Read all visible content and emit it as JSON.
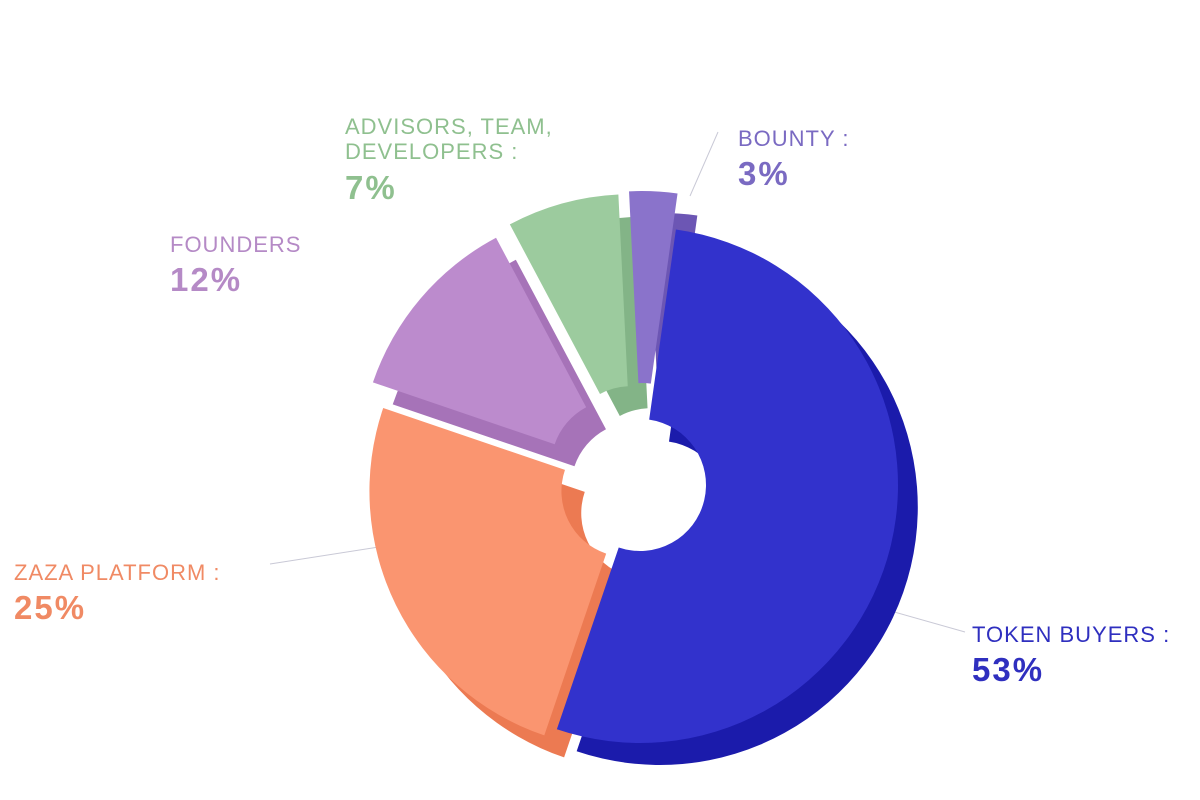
{
  "chart_data": {
    "type": "pie",
    "variant": "3d-donut",
    "title": "",
    "slices": [
      {
        "label": "TOKEN BUYERS :",
        "value": 53,
        "value_text": "53%",
        "color": "#3232cc",
        "side": "#1b1bab",
        "text_color": "#2f2fbf"
      },
      {
        "label": "ZAZA PLATFORM :",
        "value": 25,
        "value_text": "25%",
        "color": "#fa9570",
        "side": "#ec7a52",
        "text_color": "#f08a64"
      },
      {
        "label": "FOUNDERS",
        "value": 12,
        "value_text": "12%",
        "color": "#bc8bcd",
        "side": "#a673b8",
        "text_color": "#b58ac6"
      },
      {
        "label": "ADVISORS, TEAM, DEVELOPERS :",
        "label_lines": [
          "ADVISORS, TEAM,",
          "DEVELOPERS :"
        ],
        "value": 7,
        "value_text": "7%",
        "color": "#9ccb9e",
        "side": "#83b487",
        "text_color": "#8fc08f"
      },
      {
        "label": "BOUNTY :",
        "value": 3,
        "value_text": "3%",
        "color": "#8a73cb",
        "side": "#6c56b4",
        "text_color": "#7a6ac2"
      }
    ]
  }
}
